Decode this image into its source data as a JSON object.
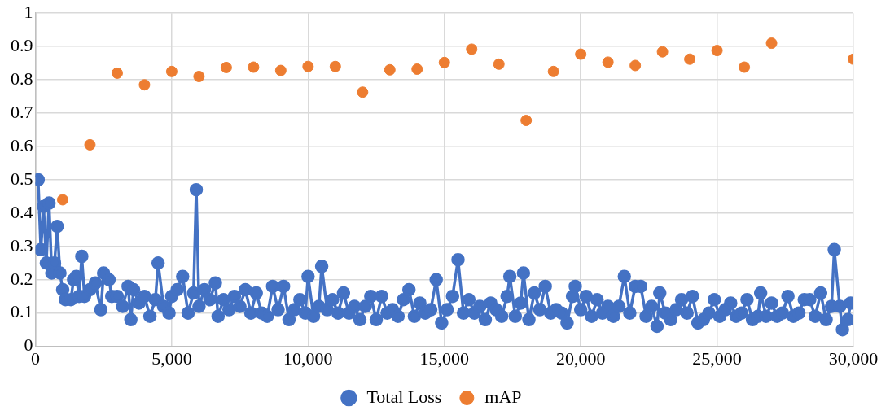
{
  "chart_data": {
    "type": "line",
    "xlim": [
      0,
      30000
    ],
    "ylim": [
      0,
      1
    ],
    "xticks": [
      0,
      {
        "value": 5000,
        "label": "5,000"
      },
      {
        "value": 10000,
        "label": "10,000"
      },
      {
        "value": 15000,
        "label": "15,000"
      },
      {
        "value": 20000,
        "label": "20,000"
      },
      {
        "value": 25000,
        "label": "25,000"
      },
      {
        "value": 30000,
        "label": "30,000"
      }
    ],
    "yticks": [
      0,
      0.1,
      0.2,
      0.3,
      0.4,
      0.5,
      0.6,
      0.7,
      0.8,
      0.9,
      1
    ],
    "grid": true,
    "legend": "bottom",
    "marker": "circle",
    "line_style": "solid",
    "series": [
      {
        "name": "Total Loss",
        "type": "line",
        "color": "#4472c4",
        "x": [
          100,
          200,
          300,
          400,
          500,
          600,
          700,
          800,
          900,
          1000,
          1100,
          1300,
          1400,
          1500,
          1600,
          1700,
          1800,
          2000,
          2200,
          2400,
          2500,
          2700,
          2800,
          3000,
          3200,
          3400,
          3500,
          3600,
          3800,
          4000,
          4200,
          4400,
          4500,
          4700,
          4900,
          5000,
          5200,
          5400,
          5600,
          5800,
          5900,
          6000,
          6200,
          6400,
          6600,
          6700,
          6900,
          7100,
          7300,
          7500,
          7700,
          7900,
          8100,
          8300,
          8500,
          8700,
          8900,
          9100,
          9300,
          9500,
          9700,
          9900,
          10000,
          10200,
          10400,
          10500,
          10700,
          10900,
          11100,
          11300,
          11500,
          11700,
          11900,
          12100,
          12300,
          12500,
          12700,
          12900,
          13100,
          13300,
          13500,
          13700,
          13900,
          14100,
          14300,
          14500,
          14700,
          14900,
          15100,
          15300,
          15500,
          15700,
          15900,
          16100,
          16300,
          16500,
          16700,
          16900,
          17100,
          17300,
          17400,
          17600,
          17800,
          17900,
          18100,
          18300,
          18500,
          18700,
          18900,
          19100,
          19300,
          19500,
          19700,
          19800,
          20000,
          20200,
          20400,
          20600,
          20800,
          21000,
          21200,
          21400,
          21600,
          21800,
          22000,
          22200,
          22400,
          22600,
          22800,
          22900,
          23100,
          23300,
          23500,
          23700,
          23900,
          24100,
          24300,
          24500,
          24700,
          24900,
          25100,
          25300,
          25500,
          25700,
          25900,
          26100,
          26300,
          26500,
          26600,
          26800,
          27000,
          27200,
          27400,
          27600,
          27800,
          28000,
          28200,
          28400,
          28600,
          28800,
          29000,
          29200,
          29300,
          29500,
          29600,
          29800,
          29900
        ],
        "values": [
          0.5,
          0.29,
          0.42,
          0.25,
          0.43,
          0.22,
          0.25,
          0.36,
          0.22,
          0.17,
          0.14,
          0.14,
          0.2,
          0.21,
          0.15,
          0.27,
          0.15,
          0.17,
          0.19,
          0.11,
          0.22,
          0.2,
          0.15,
          0.15,
          0.12,
          0.18,
          0.08,
          0.17,
          0.13,
          0.15,
          0.09,
          0.14,
          0.25,
          0.12,
          0.1,
          0.15,
          0.17,
          0.21,
          0.1,
          0.16,
          0.47,
          0.12,
          0.17,
          0.14,
          0.19,
          0.09,
          0.14,
          0.11,
          0.15,
          0.12,
          0.17,
          0.1,
          0.16,
          0.1,
          0.09,
          0.18,
          0.11,
          0.18,
          0.08,
          0.11,
          0.14,
          0.1,
          0.21,
          0.09,
          0.12,
          0.24,
          0.11,
          0.14,
          0.1,
          0.16,
          0.1,
          0.12,
          0.08,
          0.12,
          0.15,
          0.08,
          0.15,
          0.1,
          0.11,
          0.09,
          0.14,
          0.17,
          0.09,
          0.13,
          0.1,
          0.11,
          0.2,
          0.07,
          0.11,
          0.15,
          0.26,
          0.1,
          0.14,
          0.1,
          0.12,
          0.08,
          0.13,
          0.11,
          0.09,
          0.15,
          0.21,
          0.09,
          0.13,
          0.22,
          0.08,
          0.16,
          0.11,
          0.18,
          0.1,
          0.11,
          0.1,
          0.07,
          0.15,
          0.18,
          0.11,
          0.15,
          0.09,
          0.14,
          0.1,
          0.12,
          0.09,
          0.12,
          0.21,
          0.1,
          0.18,
          0.18,
          0.09,
          0.12,
          0.06,
          0.16,
          0.1,
          0.08,
          0.11,
          0.14,
          0.1,
          0.15,
          0.07,
          0.08,
          0.1,
          0.14,
          0.09,
          0.11,
          0.13,
          0.09,
          0.1,
          0.14,
          0.08,
          0.09,
          0.16,
          0.09,
          0.13,
          0.09,
          0.1,
          0.15,
          0.09,
          0.1,
          0.14,
          0.14,
          0.09,
          0.16,
          0.08,
          0.12,
          0.29,
          0.12,
          0.05,
          0.08,
          0.13
        ]
      },
      {
        "name": "mAP",
        "type": "scatter",
        "color": "#ed7d31",
        "x": [
          1000,
          2000,
          3000,
          4000,
          5000,
          6000,
          7000,
          8000,
          9000,
          10000,
          11000,
          12000,
          13000,
          14000,
          15000,
          16000,
          17000,
          18000,
          19000,
          20000,
          21000,
          22000,
          23000,
          24000,
          25000,
          26000,
          27000,
          30000
        ],
        "values": [
          0.44,
          0.605,
          0.82,
          0.785,
          0.825,
          0.81,
          0.837,
          0.838,
          0.828,
          0.84,
          0.84,
          0.763,
          0.83,
          0.832,
          0.852,
          0.892,
          0.847,
          0.678,
          0.825,
          0.877,
          0.853,
          0.843,
          0.884,
          0.862,
          0.888,
          0.838,
          0.91,
          0.862
        ]
      }
    ]
  }
}
